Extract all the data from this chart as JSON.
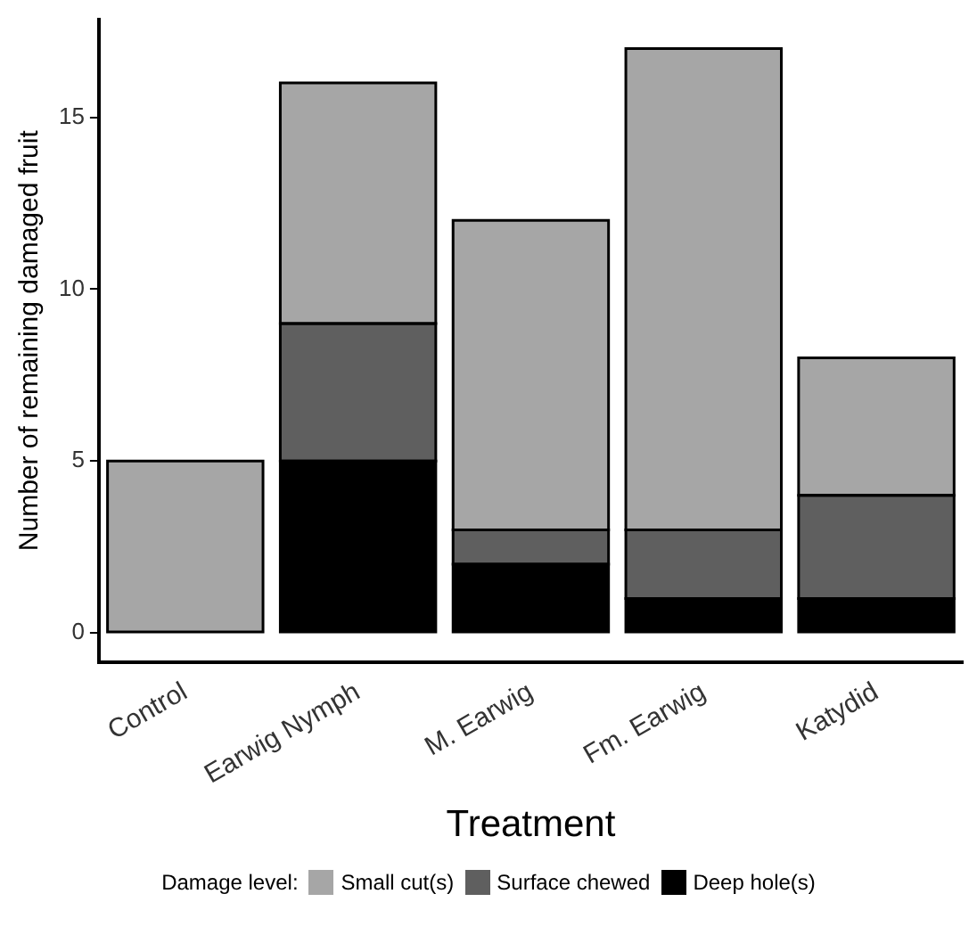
{
  "chart_data": {
    "type": "bar",
    "stacked": true,
    "xlabel": "Treatment",
    "ylabel": "Number of remaining damaged fruit",
    "legend_title": "Damage level:",
    "legend": "bottom",
    "grid": false,
    "categories": [
      "Control",
      "Earwig Nymph",
      "M. Earwig",
      "Fm. Earwig",
      "Katydid"
    ],
    "series": [
      {
        "name": "Deep hole(s)",
        "color": "#000000",
        "values": [
          0,
          5,
          2,
          1,
          1
        ]
      },
      {
        "name": "Surface chewed",
        "color": "#5f5f5f",
        "values": [
          0,
          4,
          1,
          2,
          3
        ]
      },
      {
        "name": "Small cut(s)",
        "color": "#a6a6a6",
        "values": [
          5,
          7,
          9,
          14,
          4
        ]
      }
    ],
    "ylim": [
      -0.85,
      17.85
    ],
    "yticks": [
      0,
      5,
      10,
      15
    ]
  }
}
